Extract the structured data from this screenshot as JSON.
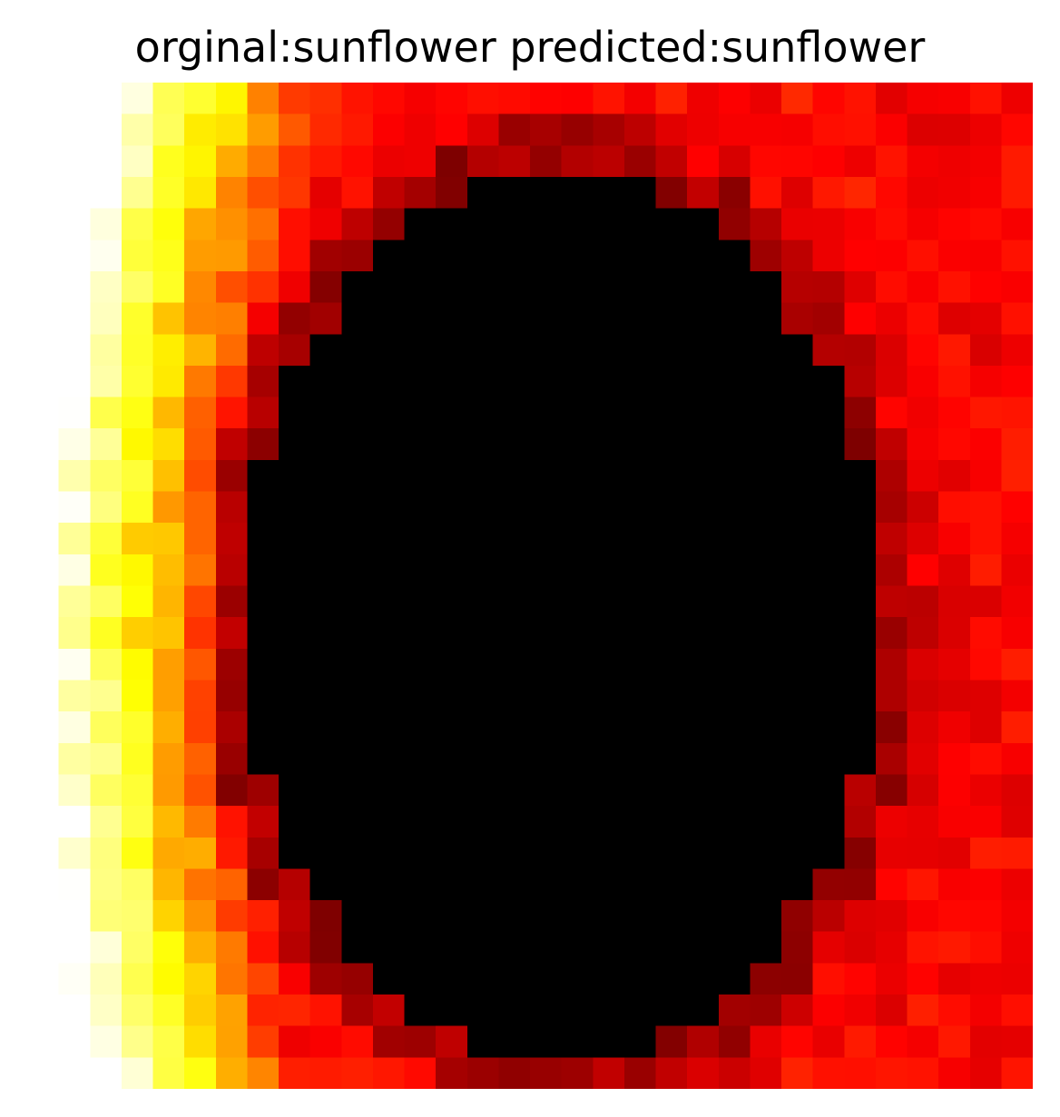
{
  "title": "orginal:sunflower predicted:sunflower",
  "image": {
    "description_colors": {
      "center": "#000000",
      "inner_ring": "#5a0000",
      "petal_red": "#b00000",
      "petal_orange": "#e85a00",
      "petal_yellow": "#ffd200"
    },
    "grid_cols": 32,
    "grid_rows": 32
  }
}
